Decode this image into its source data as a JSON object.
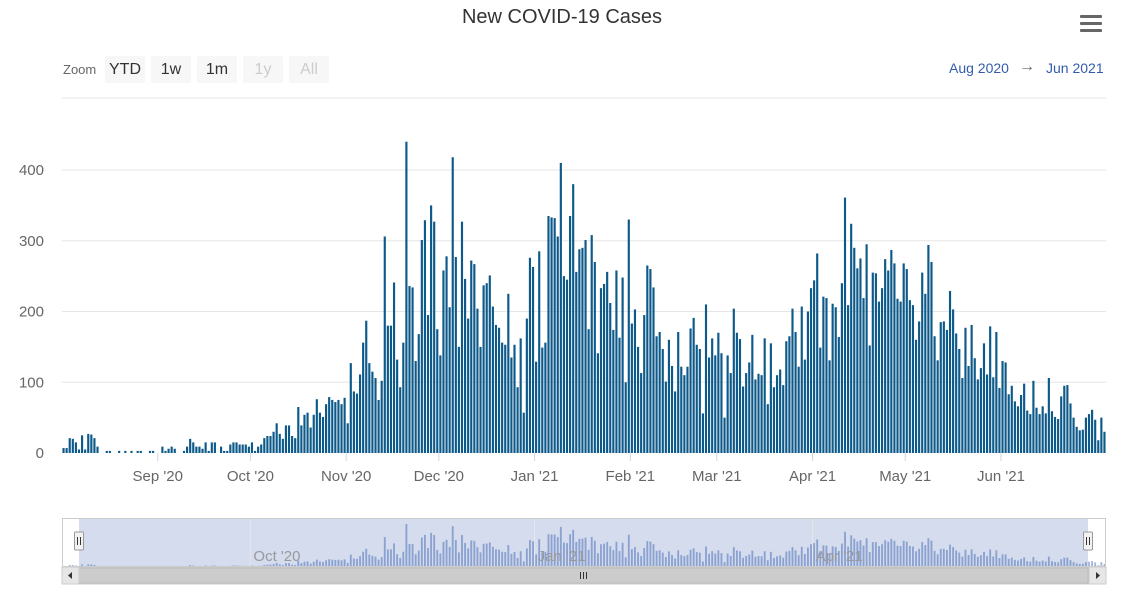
{
  "chart_data": {
    "type": "bar",
    "title": "New COVID-19 Cases",
    "xlabel": "",
    "ylabel": "",
    "ylim": [
      0,
      440
    ],
    "yticks": [
      0,
      100,
      200,
      300,
      400
    ],
    "x_start": "2020-08-01",
    "x_end": "2021-06-30",
    "x_ticks": [
      {
        "label": "Sep '20",
        "date": "2020-09-01"
      },
      {
        "label": "Oct '20",
        "date": "2020-10-01"
      },
      {
        "label": "Nov '20",
        "date": "2020-11-01"
      },
      {
        "label": "Dec '20",
        "date": "2020-12-01"
      },
      {
        "label": "Jan '21",
        "date": "2021-01-01"
      },
      {
        "label": "Feb '21",
        "date": "2021-02-01"
      },
      {
        "label": "Mar '21",
        "date": "2021-03-01"
      },
      {
        "label": "Apr '21",
        "date": "2021-04-01"
      },
      {
        "label": "May '21",
        "date": "2021-05-01"
      },
      {
        "label": "Jun '21",
        "date": "2021-06-01"
      }
    ],
    "navigator_ticks": [
      {
        "label": "Oct '20",
        "date": "2020-10-01"
      },
      {
        "label": "Jan '21",
        "date": "2021-01-01"
      },
      {
        "label": "Apr '21",
        "date": "2021-04-01"
      }
    ],
    "series": [
      {
        "name": "New COVID-19 Cases",
        "color": "#0d5a8a",
        "values": [
          7,
          7,
          21,
          20,
          15,
          5,
          25,
          5,
          27,
          26,
          21,
          9,
          0,
          0,
          3,
          3,
          0,
          0,
          3,
          0,
          3,
          0,
          3,
          0,
          3,
          3,
          0,
          0,
          3,
          3,
          0,
          0,
          9,
          3,
          6,
          9,
          6,
          0,
          0,
          3,
          9,
          20,
          15,
          9,
          9,
          6,
          15,
          3,
          15,
          15,
          0,
          9,
          3,
          3,
          12,
          15,
          15,
          12,
          12,
          12,
          9,
          15,
          3,
          9,
          12,
          21,
          24,
          24,
          30,
          42,
          27,
          20,
          39,
          39,
          24,
          21,
          65,
          39,
          54,
          57,
          36,
          54,
          76,
          57,
          51,
          69,
          79,
          75,
          72,
          75,
          69,
          78,
          42,
          127,
          87,
          84,
          111,
          156,
          187,
          127,
          115,
          106,
          75,
          102,
          306,
          180,
          180,
          241,
          132,
          93,
          156,
          440,
          236,
          234,
          130,
          168,
          301,
          329,
          195,
          350,
          327,
          175,
          138,
          258,
          278,
          206,
          418,
          277,
          150,
          327,
          246,
          190,
          272,
          267,
          204,
          150,
          237,
          240,
          251,
          207,
          181,
          177,
          156,
          153,
          225,
          135,
          153,
          93,
          162,
          57,
          190,
          276,
          263,
          129,
          285,
          149,
          156,
          335,
          333,
          332,
          306,
          410,
          250,
          245,
          335,
          380,
          256,
          288,
          290,
          301,
          175,
          308,
          270,
          141,
          233,
          239,
          256,
          212,
          174,
          258,
          163,
          248,
          100,
          330,
          183,
          203,
          150,
          113,
          195,
          265,
          260,
          234,
          165,
          171,
          147,
          101,
          160,
          123,
          87,
          171,
          122,
          110,
          122,
          176,
          191,
          153,
          147,
          56,
          210,
          135,
          162,
          138,
          170,
          141,
          50,
          138,
          113,
          204,
          170,
          161,
          94,
          113,
          128,
          167,
          104,
          112,
          110,
          162,
          69,
          155,
          93,
          110,
          118,
          96,
          158,
          165,
          204,
          171,
          122,
          207,
          132,
          200,
          233,
          244,
          282,
          149,
          221,
          219,
          131,
          211,
          206,
          164,
          240,
          361,
          209,
          324,
          290,
          261,
          275,
          219,
          295,
          152,
          255,
          254,
          214,
          233,
          274,
          258,
          287,
          268,
          218,
          214,
          268,
          260,
          216,
          209,
          160,
          186,
          255,
          225,
          294,
          270,
          165,
          131,
          185,
          186,
          174,
          229,
          203,
          169,
          147,
          106,
          177,
          123,
          181,
          134,
          104,
          120,
          155,
          111,
          179,
          107,
          171,
          92,
          130,
          128,
          83,
          95,
          73,
          66,
          82,
          98,
          60,
          55,
          102,
          64,
          55,
          66,
          56,
          106,
          59,
          51,
          48,
          80,
          95,
          96,
          70,
          50,
          37,
          32,
          33,
          50,
          55,
          61,
          47,
          18,
          50,
          30
        ]
      }
    ]
  },
  "range_selector": {
    "label": "Zoom",
    "buttons": [
      {
        "label": "YTD",
        "enabled": true
      },
      {
        "label": "1w",
        "enabled": true
      },
      {
        "label": "1m",
        "enabled": true
      },
      {
        "label": "1y",
        "enabled": false
      },
      {
        "label": "All",
        "enabled": false
      }
    ],
    "from": "Aug 2020",
    "arrow": "→",
    "to": "Jun 2021"
  },
  "menu": {
    "icon": "hamburger-menu-icon"
  },
  "navigator": {
    "left_handle_icon": "grip-handle-icon",
    "right_handle_icon": "grip-handle-icon",
    "scroll_left_icon": "arrow-left-icon",
    "scroll_right_icon": "arrow-right-icon",
    "scroll_grip_icon": "grip-lines-icon",
    "mask_color": "#ccd6eb",
    "series_color": "#335cad"
  }
}
